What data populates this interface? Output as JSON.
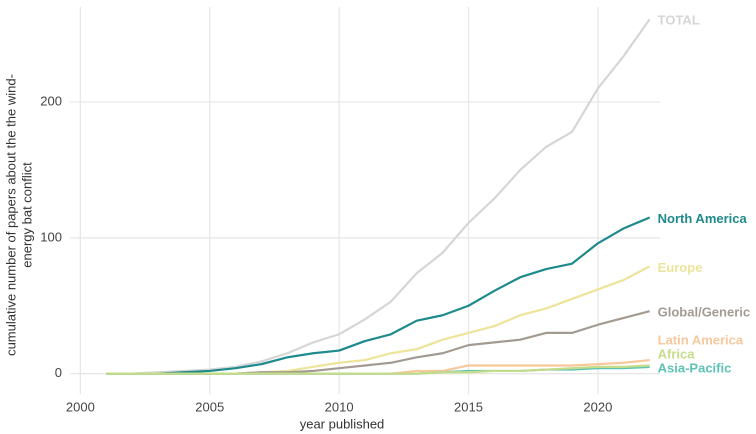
{
  "chart_data": {
    "type": "line",
    "x_label": "year published",
    "y_label": [
      "cumulative number of papers about the the wind-",
      "energy bat conflict"
    ],
    "x": [
      2001,
      2002,
      2003,
      2004,
      2005,
      2006,
      2007,
      2008,
      2009,
      2010,
      2011,
      2012,
      2013,
      2014,
      2015,
      2016,
      2017,
      2018,
      2019,
      2020,
      2021,
      2022
    ],
    "series": [
      {
        "name": "TOTAL",
        "color": "#d6d6d6",
        "values": [
          0,
          0,
          1,
          2,
          3,
          5,
          9,
          15,
          23,
          29,
          40,
          53,
          74,
          89,
          111,
          129,
          150,
          167,
          178,
          210,
          234,
          261
        ]
      },
      {
        "name": "North America",
        "color": "#1f8a8c",
        "values": [
          0,
          0,
          0,
          1,
          2,
          4,
          7,
          12,
          15,
          17,
          24,
          29,
          39,
          43,
          50,
          61,
          71,
          77,
          81,
          96,
          107,
          115
        ]
      },
      {
        "name": "Europe",
        "color": "#ede49a",
        "values": [
          0,
          0,
          0,
          0,
          0,
          0,
          1,
          2,
          5,
          8,
          10,
          15,
          18,
          25,
          30,
          35,
          43,
          48,
          55,
          62,
          69,
          79
        ]
      },
      {
        "name": "Global/Generic",
        "color": "#a39b92",
        "values": [
          0,
          0,
          0,
          0,
          0,
          0,
          1,
          1,
          2,
          4,
          6,
          8,
          12,
          15,
          21,
          23,
          25,
          30,
          30,
          36,
          41,
          46
        ]
      },
      {
        "name": "Latin America",
        "color": "#f7c89c",
        "values": [
          0,
          0,
          0,
          0,
          0,
          0,
          0,
          0,
          0,
          0,
          0,
          0,
          2,
          2,
          6,
          6,
          6,
          6,
          6,
          7,
          8,
          10
        ]
      },
      {
        "name": "Asia-Pacific",
        "color": "#5cc3b4",
        "values": [
          0,
          0,
          0,
          0,
          0,
          0,
          0,
          0,
          0,
          0,
          0,
          0,
          0,
          1,
          2,
          2,
          2,
          3,
          3,
          4,
          4,
          5
        ]
      },
      {
        "name": "Africa",
        "color": "#c5dc8a",
        "values": [
          0,
          0,
          0,
          0,
          0,
          0,
          0,
          0,
          0,
          0,
          0,
          0,
          0,
          1,
          1,
          2,
          2,
          3,
          4,
          5,
          5,
          6
        ]
      }
    ],
    "xlim": [
      1999.6,
      2022.4
    ],
    "xticks": [
      2000,
      2005,
      2010,
      2015,
      2020
    ],
    "ylim": [
      -15,
      270
    ],
    "yticks": [
      0,
      100,
      200
    ],
    "grid": true
  }
}
